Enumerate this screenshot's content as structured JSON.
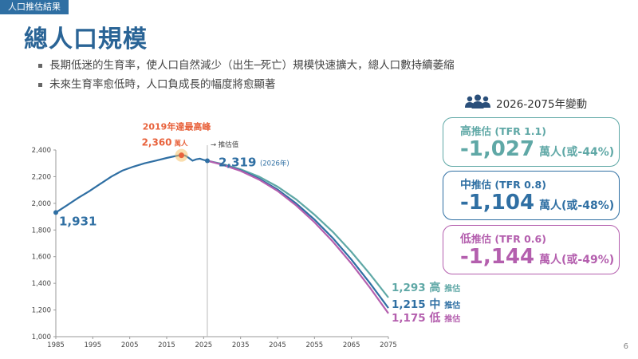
{
  "header": {
    "tag": "人口推估結果",
    "title": "總人口規模"
  },
  "bullets": [
    "長期低迷的生育率，使人口自然減少（出生─死亡）規模快速擴大，總人口數持續萎縮",
    "未來生育率愈低時，人口負成長的幅度將愈顯著"
  ],
  "legend": {
    "title": "2026-2075年變動",
    "icon": "people-icon",
    "cards": [
      {
        "key": "high",
        "label_big": "高",
        "label": "推估 (TFR 1.1)",
        "value": "-1,027",
        "unit": "萬人(或-44%)",
        "color": "#5fa8a6"
      },
      {
        "key": "mid",
        "label_big": "中",
        "label": "推估 (TFR 0.8)",
        "value": "-1,104",
        "unit": "萬人(或-48%)",
        "color": "#2f6fa3"
      },
      {
        "key": "low",
        "label_big": "低",
        "label": "推估 (TFR 0.6)",
        "value": "-1,144",
        "unit": "萬人(或-49%)",
        "color": "#b45fae"
      }
    ]
  },
  "chart_data": {
    "type": "line",
    "ylim": [
      1000,
      2400
    ],
    "xlim": [
      1985,
      2075
    ],
    "x_ticks": [
      1985,
      1995,
      2005,
      2015,
      2025,
      2035,
      2045,
      2055,
      2065,
      2075
    ],
    "y_ticks": [
      1000,
      1200,
      1400,
      1600,
      1800,
      2000,
      2200,
      2400
    ],
    "y_tick_labels": [
      "1,000",
      "1,200",
      "1,400",
      "1,600",
      "1,800",
      "2,000",
      "2,200",
      "2,400"
    ],
    "grid": false,
    "projection_start": 2026,
    "projection_label": "→ 推估值",
    "history": {
      "x": [
        1985,
        1988,
        1991,
        1994,
        1997,
        2000,
        2003,
        2006,
        2009,
        2012,
        2015,
        2018,
        2019,
        2020,
        2021,
        2022,
        2023,
        2024,
        2025,
        2026
      ],
      "y": [
        1931,
        1985,
        2040,
        2090,
        2145,
        2200,
        2245,
        2275,
        2300,
        2320,
        2340,
        2358,
        2360,
        2358,
        2340,
        2320,
        2330,
        2335,
        2325,
        2319
      ]
    },
    "series": [
      {
        "key": "high",
        "color": "#5fa8a6",
        "x": [
          2026,
          2030,
          2035,
          2040,
          2045,
          2050,
          2055,
          2060,
          2065,
          2070,
          2075
        ],
        "y": [
          2319,
          2295,
          2255,
          2200,
          2125,
          2030,
          1915,
          1785,
          1635,
          1470,
          1293
        ]
      },
      {
        "key": "mid",
        "color": "#2f6fa3",
        "x": [
          2026,
          2030,
          2035,
          2040,
          2045,
          2050,
          2055,
          2060,
          2065,
          2070,
          2075
        ],
        "y": [
          2319,
          2292,
          2248,
          2185,
          2103,
          2000,
          1878,
          1738,
          1578,
          1402,
          1215
        ]
      },
      {
        "key": "low",
        "color": "#b45fae",
        "x": [
          2026,
          2030,
          2035,
          2040,
          2045,
          2050,
          2055,
          2060,
          2065,
          2070,
          2075
        ],
        "y": [
          2319,
          2290,
          2243,
          2178,
          2093,
          1985,
          1858,
          1712,
          1548,
          1368,
          1175
        ]
      }
    ],
    "annotations": {
      "start": {
        "x": 1985,
        "y": 1931,
        "label": "1,931"
      },
      "peak": {
        "x": 2019,
        "y": 2360,
        "title": "2019年達最高峰",
        "value": "2,360",
        "unit": "萬人"
      },
      "proj": {
        "x": 2026,
        "y": 2319,
        "label": "2,319",
        "note": "(2026年)"
      },
      "ends": [
        {
          "key": "high",
          "value": "1,293",
          "level": "高",
          "suffix": "推估"
        },
        {
          "key": "mid",
          "value": "1,215",
          "level": "中",
          "suffix": "推估"
        },
        {
          "key": "low",
          "value": "1,175",
          "level": "低",
          "suffix": "推估"
        }
      ]
    }
  },
  "page_number": "6"
}
